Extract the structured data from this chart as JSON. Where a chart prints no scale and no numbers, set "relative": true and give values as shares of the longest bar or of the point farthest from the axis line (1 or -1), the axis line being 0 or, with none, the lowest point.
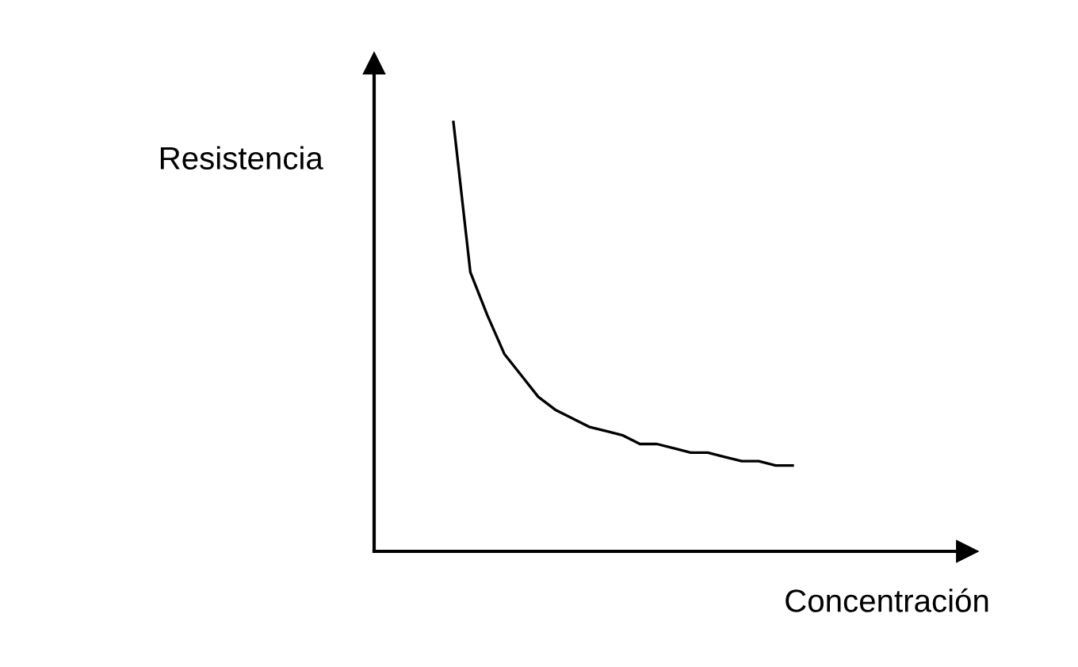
{
  "chart_data": {
    "type": "line",
    "relative": true,
    "xlabel": "Concentración",
    "ylabel": "Resistencia",
    "color": "#000000",
    "categories": [
      null,
      null,
      null,
      null,
      null,
      null,
      null,
      null,
      null,
      null,
      null,
      null,
      null,
      null,
      null,
      null,
      null,
      null,
      null,
      null,
      null
    ],
    "values": [
      1,
      0.65,
      0.55,
      0.46,
      0.41,
      0.36,
      0.33,
      0.31,
      0.29,
      0.28,
      0.27,
      0.25,
      0.25,
      0.24,
      0.23,
      0.23,
      0.22,
      0.21,
      0.21,
      0.2,
      0.2
    ],
    "legend": false,
    "marker": "none",
    "line_style": "solid"
  }
}
